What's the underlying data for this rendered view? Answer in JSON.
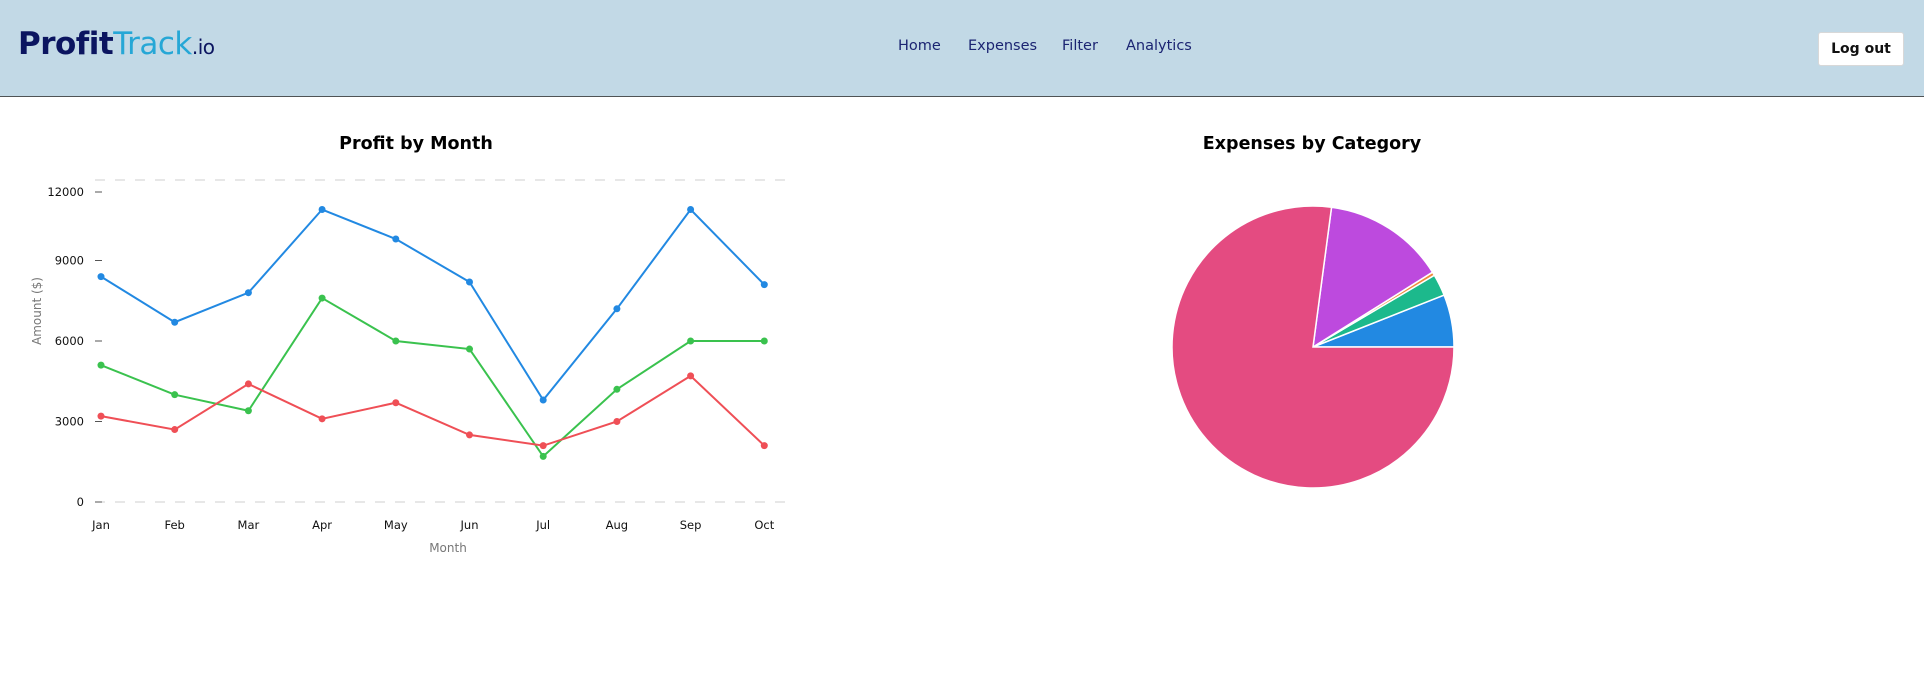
{
  "header": {
    "logo": {
      "profit": "Profit",
      "track": "Track",
      "tld": ".io"
    },
    "nav": [
      "Home",
      "Expenses",
      "Filter",
      "Analytics"
    ],
    "logout_label": "Log out"
  },
  "colors": {
    "header_bg": "#c2d9e6",
    "logo_dark": "#0b1560",
    "logo_light": "#26a7d6",
    "series_blue": "#2289e2",
    "series_green": "#3ac24e",
    "series_red": "#ef4f56",
    "pie_pink": "#e44b81",
    "pie_purple": "#bd4ade",
    "pie_orange": "#f08a3c",
    "pie_teal": "#1cb98c",
    "pie_blue": "#2289e2"
  },
  "chart_data": [
    {
      "type": "line",
      "title": "Profit by Month",
      "xlabel": "Month",
      "ylabel": "Amount ($)",
      "categories": [
        "Jan",
        "Feb",
        "Mar",
        "Apr",
        "May",
        "Jun",
        "Jul",
        "Aug",
        "Sep",
        "Oct"
      ],
      "ylim": [
        0,
        12000
      ],
      "yticks": [
        0,
        3000,
        6000,
        9000,
        12000
      ],
      "grid": "dashed horizontal at 0 and max",
      "series": [
        {
          "color": "#2289e2",
          "values": [
            8400,
            6700,
            7800,
            10900,
            9800,
            8200,
            3800,
            7200,
            10900,
            8100
          ]
        },
        {
          "color": "#3ac24e",
          "values": [
            5100,
            4000,
            3400,
            7600,
            6000,
            5700,
            1700,
            4200,
            6000,
            6000
          ]
        },
        {
          "color": "#ef4f56",
          "values": [
            3200,
            2700,
            4400,
            3100,
            3700,
            2500,
            2100,
            3000,
            4700,
            2100
          ]
        }
      ]
    },
    {
      "type": "pie",
      "title": "Expenses by Category",
      "slices": [
        {
          "value": 6.0,
          "color": "#2289e2"
        },
        {
          "value": 2.5,
          "color": "#1cb98c"
        },
        {
          "value": 0.4,
          "color": "#f08a3c"
        },
        {
          "value": 14.0,
          "color": "#bd4ade"
        },
        {
          "value": 77.1,
          "color": "#e44b81"
        }
      ]
    }
  ]
}
